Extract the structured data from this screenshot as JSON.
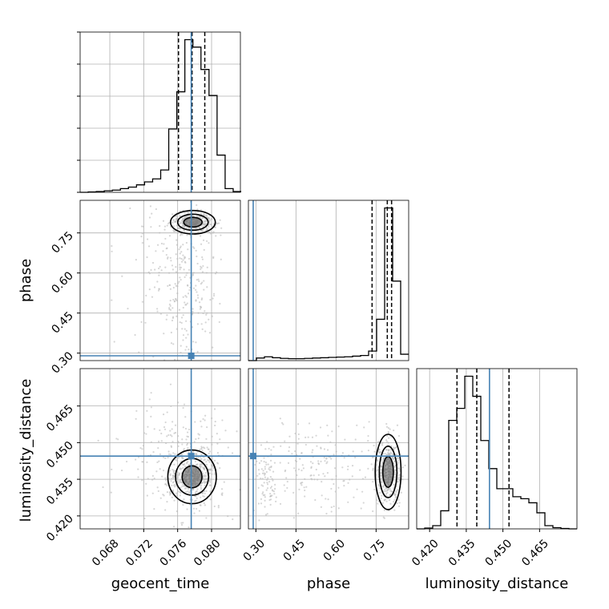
{
  "chart_data": {
    "type": "corner",
    "parameters": [
      "geocent_time",
      "phase",
      "luminosity_distance"
    ],
    "axis_labels": {
      "geocent_time": "geocent_time",
      "phase": "phase",
      "luminosity_distance": "luminosity_distance"
    },
    "ranges": {
      "geocent_time": [
        0.0645,
        0.0834
      ],
      "phase": [
        0.272,
        0.872
      ],
      "luminosity_distance": [
        0.4147,
        0.4803
      ]
    },
    "ticks": {
      "geocent_time": {
        "values": [
          0.068,
          0.072,
          0.076,
          0.08
        ],
        "labels": [
          "0.068",
          "0.072",
          "0.076",
          "0.080"
        ]
      },
      "phase": {
        "values": [
          0.3,
          0.45,
          0.6,
          0.75
        ],
        "labels": [
          "0.30",
          "0.45",
          "0.60",
          "0.75"
        ]
      },
      "luminosity_distance": {
        "values": [
          0.42,
          0.435,
          0.45,
          0.465
        ],
        "labels": [
          "0.420",
          "0.435",
          "0.450",
          "0.465"
        ]
      }
    },
    "truths": {
      "geocent_time": 0.0776,
      "phase": 0.29,
      "luminosity_distance": 0.4445
    },
    "quantiles": {
      "geocent_time": [
        0.0761,
        0.0777,
        0.0792
      ],
      "phase": [
        0.735,
        0.792,
        0.808
      ],
      "luminosity_distance": [
        0.4312,
        0.4393,
        0.4525
      ]
    },
    "histograms": {
      "geocent_time": {
        "edges": [
          0.0645,
          0.06545,
          0.0664,
          0.06735,
          0.0683,
          0.06925,
          0.0702,
          0.07115,
          0.0721,
          0.07305,
          0.074,
          0.07495,
          0.0759,
          0.07685,
          0.0778,
          0.07875,
          0.0797,
          0.08065,
          0.0816,
          0.08255,
          0.0835
        ],
        "counts": [
          0,
          1,
          2,
          4,
          6,
          10,
          14,
          20,
          28,
          36,
          60,
          170,
          270,
          410,
          390,
          330,
          260,
          100,
          10,
          2
        ]
      },
      "phase": {
        "edges": [
          0.272,
          0.302,
          0.332,
          0.362,
          0.392,
          0.422,
          0.452,
          0.482,
          0.512,
          0.542,
          0.572,
          0.602,
          0.632,
          0.662,
          0.692,
          0.722,
          0.752,
          0.782,
          0.812,
          0.842,
          0.872
        ],
        "counts": [
          0,
          8,
          12,
          9,
          7,
          6,
          6,
          7,
          8,
          9,
          10,
          11,
          12,
          14,
          16,
          30,
          130,
          480,
          250,
          20
        ]
      },
      "luminosity_distance": {
        "edges": [
          0.4147,
          0.41798,
          0.42126,
          0.42454,
          0.42782,
          0.4311,
          0.43438,
          0.43766,
          0.44094,
          0.44422,
          0.4475,
          0.45078,
          0.45406,
          0.45734,
          0.46062,
          0.4639,
          0.46718,
          0.47046,
          0.47374,
          0.47702,
          0.4803
        ],
        "counts": [
          0,
          2,
          8,
          45,
          270,
          300,
          380,
          330,
          220,
          150,
          100,
          100,
          80,
          75,
          65,
          40,
          8,
          3,
          1,
          0
        ]
      }
    },
    "grid": true,
    "colors": {
      "line": "#000000",
      "truth": "#4682b4",
      "points": "#bbbbbb",
      "grid": "#b0b0b0"
    }
  }
}
